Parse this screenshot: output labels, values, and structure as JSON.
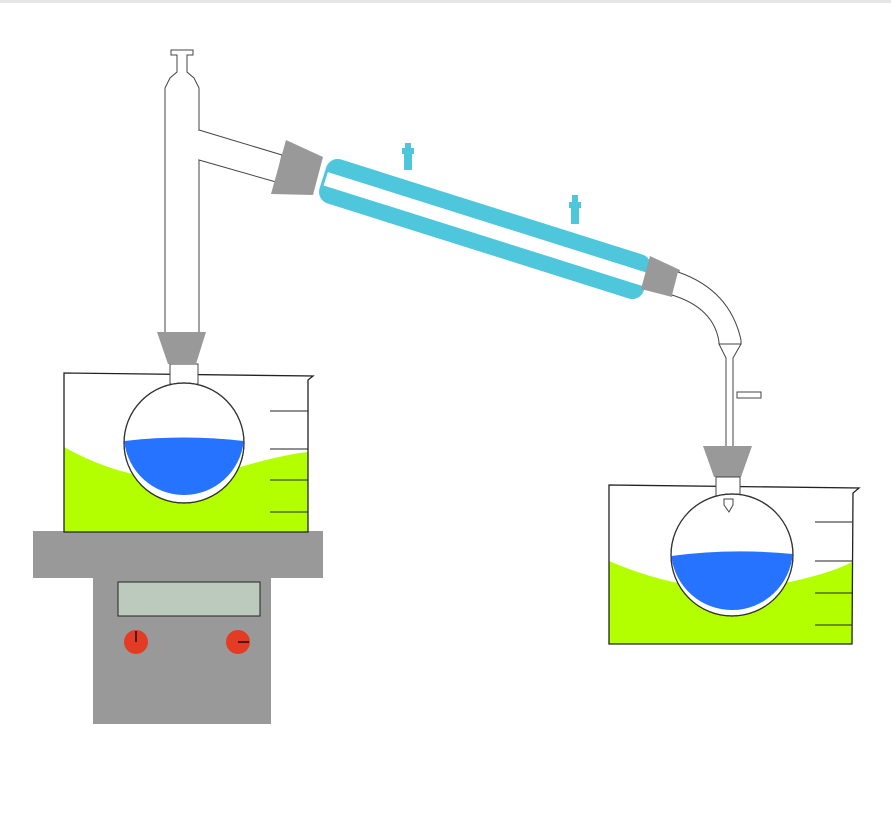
{
  "diagram": {
    "type": "distillation-apparatus",
    "components": [
      "heating-plate",
      "heating-bath-left",
      "distilling-flask",
      "still-head",
      "condenser",
      "receiver-adapter",
      "cooling-bath-right",
      "receiving-flask"
    ],
    "colors": {
      "glass_stroke": "#444444",
      "joint_gray": "#999999",
      "condenser_jacket": "#4ec7dc",
      "liquid_blue": "#2673ff",
      "bath_green": "#b3ff00",
      "plate_gray": "#999999",
      "display_green": "#bccabd",
      "knob_red": "#e33b24"
    },
    "heating_plate": {
      "knobs": [
        "knob-left",
        "knob-right"
      ]
    }
  }
}
